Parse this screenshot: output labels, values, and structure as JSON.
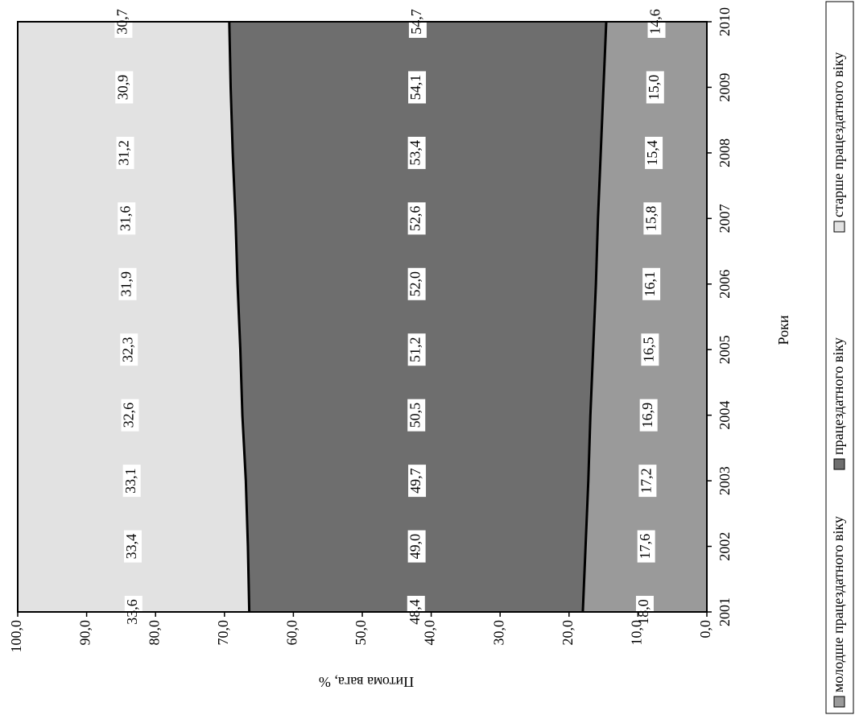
{
  "chart_data": {
    "type": "stacked_area",
    "x_label": "Роки",
    "y_label": "Питома вага, %",
    "categories": [
      "2001",
      "2002",
      "2003",
      "2004",
      "2005",
      "2006",
      "2007",
      "2008",
      "2009",
      "2010"
    ],
    "series": [
      {
        "name": "молодше працездатного віку",
        "color": "#9a9a9a",
        "values": [
          18.0,
          17.6,
          17.2,
          16.9,
          16.5,
          16.1,
          15.8,
          15.4,
          15.0,
          14.6
        ],
        "value_labels": [
          "18,0",
          "17,6",
          "17,2",
          "16,9",
          "16,5",
          "16,1",
          "15,8",
          "15,4",
          "15,0",
          "14,6"
        ]
      },
      {
        "name": "працездатного віку",
        "color": "#6e6e6e",
        "values": [
          48.4,
          49.0,
          49.7,
          50.5,
          51.2,
          52.0,
          52.6,
          53.4,
          54.1,
          54.7
        ],
        "value_labels": [
          "48,4",
          "49,0",
          "49,7",
          "50,5",
          "51,2",
          "52,0",
          "52,6",
          "53,4",
          "54,1",
          "54,7"
        ]
      },
      {
        "name": "старше працездатного віку",
        "color": "#e2e2e2",
        "values": [
          33.6,
          33.4,
          33.1,
          32.6,
          32.3,
          31.9,
          31.6,
          31.2,
          30.9,
          30.7
        ],
        "value_labels": [
          "33,6",
          "33,4",
          "33,1",
          "32,6",
          "32,3",
          "31,9",
          "31,6",
          "31,2",
          "30,9",
          "30,7"
        ]
      }
    ],
    "ylim": [
      0,
      100
    ],
    "yticks": [
      {
        "value": 0,
        "label": "0,0"
      },
      {
        "value": 10,
        "label": "10,0"
      },
      {
        "value": 20,
        "label": "20,0"
      },
      {
        "value": 30,
        "label": "30,0"
      },
      {
        "value": 40,
        "label": "40,0"
      },
      {
        "value": 50,
        "label": "50,0"
      },
      {
        "value": 60,
        "label": "60,0"
      },
      {
        "value": 70,
        "label": "70,0"
      },
      {
        "value": 80,
        "label": "80,0"
      },
      {
        "value": 90,
        "label": "90,0"
      },
      {
        "value": 100,
        "label": "100,0"
      }
    ],
    "rotation": -90,
    "legend": "bottom"
  }
}
